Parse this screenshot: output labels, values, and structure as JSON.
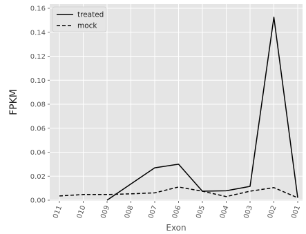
{
  "chart_data": {
    "type": "line",
    "title": "",
    "xlabel": "Exon",
    "ylabel": "FPKM",
    "categories": [
      "011",
      "010",
      "009",
      "008",
      "007",
      "006",
      "005",
      "004",
      "003",
      "002",
      "001"
    ],
    "ylim": [
      0,
      0.16
    ],
    "yticks": [
      "0.00",
      "0.02",
      "0.04",
      "0.06",
      "0.08",
      "0.10",
      "0.12",
      "0.14",
      "0.16"
    ],
    "grid": true,
    "legend": "upper-left",
    "series": [
      {
        "name": "treated",
        "style": "solid",
        "color": "#000000",
        "values": [
          null,
          null,
          0.0,
          0.0135,
          0.027,
          0.03,
          0.0075,
          0.0078,
          0.0115,
          0.1525,
          0.002
        ]
      },
      {
        "name": "mock",
        "style": "dashed",
        "color": "#000000",
        "values": [
          0.0035,
          0.0047,
          0.0047,
          0.0053,
          0.0061,
          0.011,
          0.0075,
          0.003,
          0.0075,
          0.0105,
          0.002
        ]
      }
    ],
    "colors": {
      "plot_background": "#e5e5e5",
      "grid": "#ffffff",
      "tick_text": "#555555"
    }
  }
}
